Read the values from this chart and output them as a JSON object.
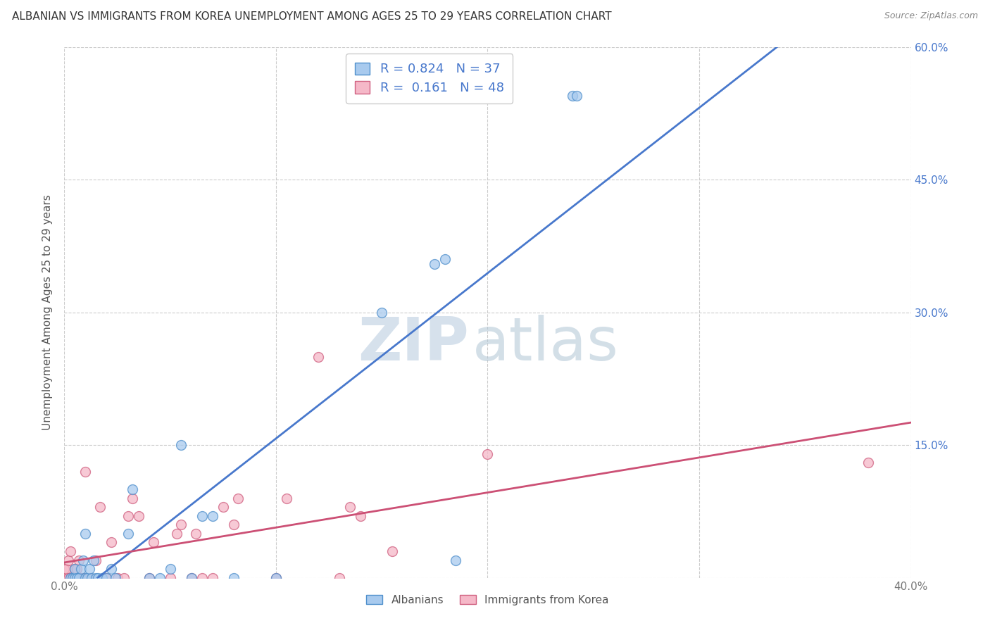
{
  "title": "ALBANIAN VS IMMIGRANTS FROM KOREA UNEMPLOYMENT AMONG AGES 25 TO 29 YEARS CORRELATION CHART",
  "source": "Source: ZipAtlas.com",
  "ylabel": "Unemployment Among Ages 25 to 29 years",
  "xlim": [
    0.0,
    0.4
  ],
  "ylim": [
    0.0,
    0.6
  ],
  "xticks": [
    0.0,
    0.1,
    0.2,
    0.3,
    0.4
  ],
  "yticks": [
    0.0,
    0.15,
    0.3,
    0.45,
    0.6
  ],
  "r_albanian": 0.824,
  "n_albanian": 37,
  "r_korea": 0.161,
  "n_korea": 48,
  "color_albanian_fill": "#A8CAEE",
  "color_albanian_edge": "#5090CC",
  "color_korea_fill": "#F5B8C8",
  "color_korea_edge": "#D06080",
  "line_color_albanian": "#4878CC",
  "line_color_korea": "#CC5075",
  "title_color": "#333333",
  "source_color": "#888888",
  "ylabel_color": "#555555",
  "ytick_color": "#4878CC",
  "xtick_color": "#777777",
  "grid_color": "#CCCCCC",
  "watermark_zip_color": "#C5D5E5",
  "watermark_atlas_color": "#B0C5D5",
  "albanian_x": [
    0.003,
    0.004,
    0.005,
    0.005,
    0.006,
    0.007,
    0.008,
    0.009,
    0.01,
    0.01,
    0.011,
    0.012,
    0.013,
    0.014,
    0.015,
    0.016,
    0.018,
    0.02,
    0.022,
    0.024,
    0.03,
    0.032,
    0.04,
    0.045,
    0.05,
    0.055,
    0.06,
    0.065,
    0.07,
    0.08,
    0.1,
    0.15,
    0.175,
    0.18,
    0.185,
    0.24,
    0.242
  ],
  "albanian_y": [
    0.0,
    0.0,
    0.0,
    0.01,
    0.0,
    0.0,
    0.01,
    0.02,
    0.0,
    0.05,
    0.0,
    0.01,
    0.0,
    0.02,
    0.0,
    0.0,
    0.0,
    0.0,
    0.01,
    0.0,
    0.05,
    0.1,
    0.0,
    0.0,
    0.01,
    0.15,
    0.0,
    0.07,
    0.07,
    0.0,
    0.0,
    0.3,
    0.355,
    0.36,
    0.02,
    0.545,
    0.545
  ],
  "korea_x": [
    0.0,
    0.0,
    0.001,
    0.001,
    0.002,
    0.002,
    0.003,
    0.003,
    0.004,
    0.005,
    0.005,
    0.006,
    0.006,
    0.007,
    0.008,
    0.009,
    0.01,
    0.012,
    0.015,
    0.017,
    0.02,
    0.022,
    0.025,
    0.028,
    0.03,
    0.032,
    0.035,
    0.04,
    0.042,
    0.05,
    0.053,
    0.055,
    0.06,
    0.062,
    0.065,
    0.07,
    0.075,
    0.08,
    0.082,
    0.1,
    0.105,
    0.12,
    0.13,
    0.135,
    0.14,
    0.155,
    0.2,
    0.38
  ],
  "korea_y": [
    0.0,
    0.01,
    0.0,
    0.01,
    0.0,
    0.02,
    0.0,
    0.03,
    0.0,
    0.0,
    0.01,
    0.0,
    0.01,
    0.02,
    0.0,
    0.0,
    0.12,
    0.0,
    0.02,
    0.08,
    0.0,
    0.04,
    0.0,
    0.0,
    0.07,
    0.09,
    0.07,
    0.0,
    0.04,
    0.0,
    0.05,
    0.06,
    0.0,
    0.05,
    0.0,
    0.0,
    0.08,
    0.06,
    0.09,
    0.0,
    0.09,
    0.25,
    0.0,
    0.08,
    0.07,
    0.03,
    0.14,
    0.13
  ]
}
